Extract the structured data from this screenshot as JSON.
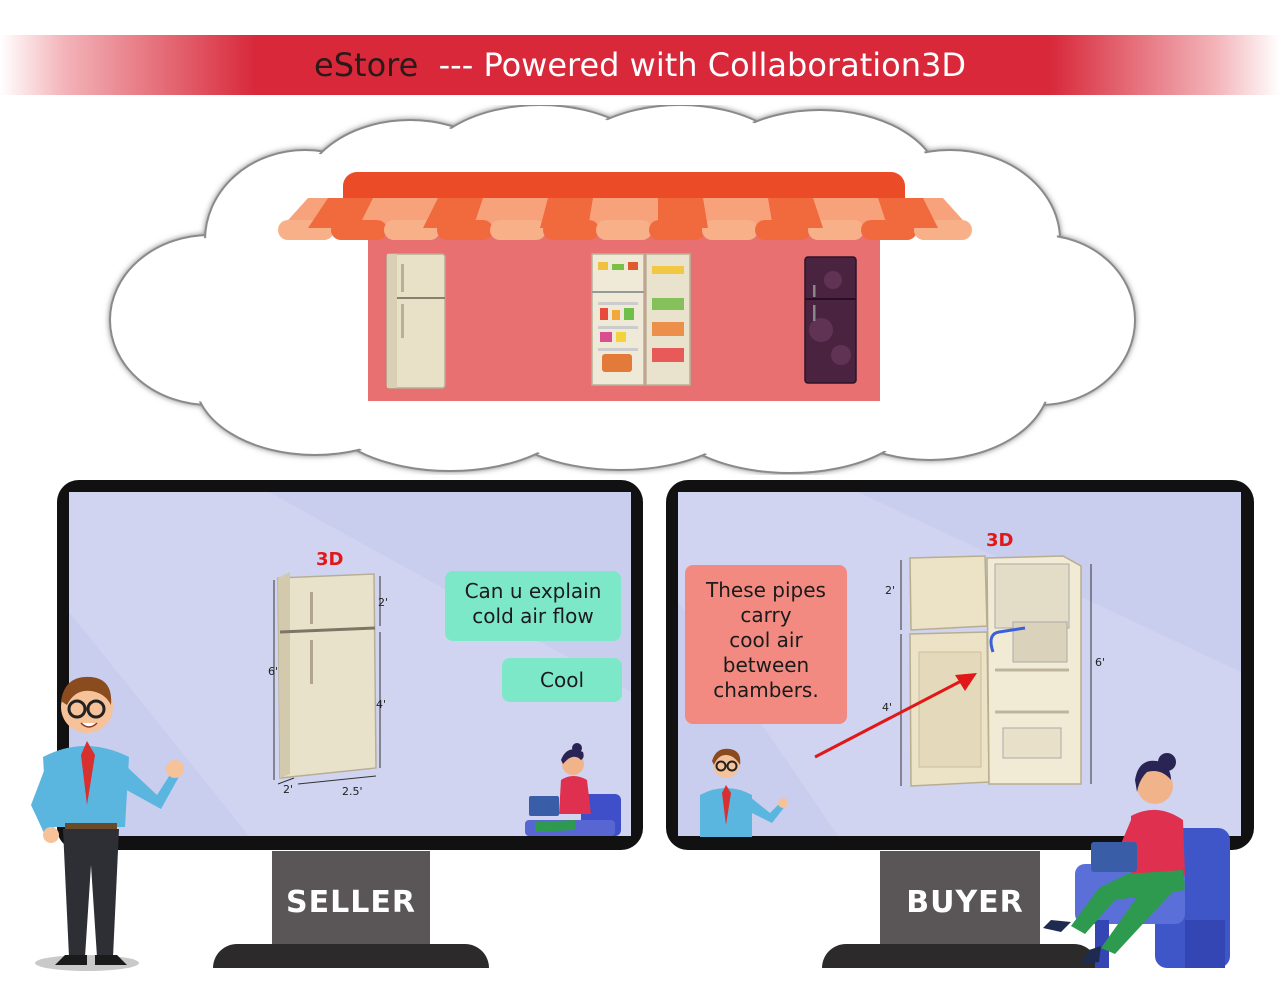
{
  "header": {
    "brand": "eStore",
    "tagline": "--- Powered with Collaboration3D"
  },
  "seller_screen": {
    "label_3d": "3D",
    "bubble_question_line1": "Can u explain",
    "bubble_question_line2": "cold air flow",
    "bubble_reply": "Cool",
    "dims": {
      "top": "2'",
      "height": "6'",
      "bottom_part": "4'",
      "depth": "2'",
      "width": "2.5'"
    },
    "stand_label": "SELLER"
  },
  "buyer_screen": {
    "label_3d": "3D",
    "bubble_lines": [
      "These pipes",
      "carry",
      "cool air",
      "between",
      "chambers."
    ],
    "dims": {
      "top": "2'",
      "bottom_part": "4'",
      "height": "6'"
    },
    "stand_label": "BUYER"
  },
  "colors": {
    "banner": "#d8283a",
    "awning": "#ec4b27",
    "store_wall": "#e87070",
    "screen": "#c9cdee",
    "bubble_green": "#7de8c8",
    "bubble_pink": "#f28a82",
    "label_3d": "#e01818"
  }
}
